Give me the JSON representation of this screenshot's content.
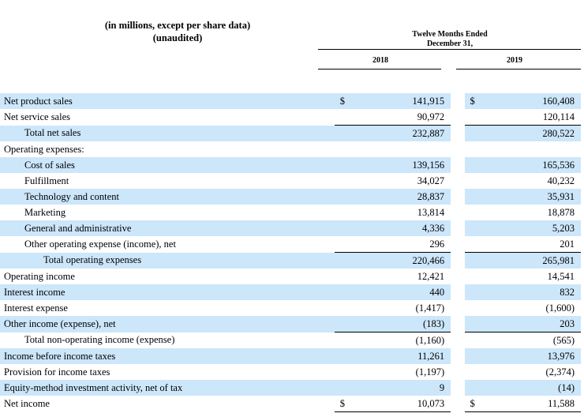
{
  "header": {
    "scope_line1": "(in millions, except per share data)",
    "scope_line2": "(unaudited)",
    "period_line1": "Twelve Months Ended",
    "period_line2": "December 31,",
    "year1": "2018",
    "year2": "2019"
  },
  "rows": [
    {
      "label": "Net product sales",
      "indent": 0,
      "cur": "$",
      "v2018": "141,915",
      "v2019": "160,408",
      "shade": true
    },
    {
      "label": "Net service sales",
      "indent": 0,
      "cur": "",
      "v2018": "90,972",
      "v2019": "120,114",
      "shade": false
    },
    {
      "label": "Total net sales",
      "indent": 1,
      "cur": "",
      "v2018": "232,887",
      "v2019": "280,522",
      "shade": true
    },
    {
      "label": "Operating expenses:",
      "indent": 0,
      "cur": "",
      "v2018": "",
      "v2019": "",
      "shade": false
    },
    {
      "label": "Cost of sales",
      "indent": 1,
      "cur": "",
      "v2018": "139,156",
      "v2019": "165,536",
      "shade": true
    },
    {
      "label": "Fulfillment",
      "indent": 1,
      "cur": "",
      "v2018": "34,027",
      "v2019": "40,232",
      "shade": false
    },
    {
      "label": "Technology and content",
      "indent": 1,
      "cur": "",
      "v2018": "28,837",
      "v2019": "35,931",
      "shade": true
    },
    {
      "label": "Marketing",
      "indent": 1,
      "cur": "",
      "v2018": "13,814",
      "v2019": "18,878",
      "shade": false
    },
    {
      "label": "General and administrative",
      "indent": 1,
      "cur": "",
      "v2018": "4,336",
      "v2019": "5,203",
      "shade": true
    },
    {
      "label": "Other operating expense (income), net",
      "indent": 1,
      "cur": "",
      "v2018": "296",
      "v2019": "201",
      "shade": false
    },
    {
      "label": "Total operating expenses",
      "indent": 2,
      "cur": "",
      "v2018": "220,466",
      "v2019": "265,981",
      "shade": true
    },
    {
      "label": "Operating income",
      "indent": 0,
      "cur": "",
      "v2018": "12,421",
      "v2019": "14,541",
      "shade": false
    },
    {
      "label": "Interest income",
      "indent": 0,
      "cur": "",
      "v2018": "440",
      "v2019": "832",
      "shade": true
    },
    {
      "label": "Interest expense",
      "indent": 0,
      "cur": "",
      "v2018": "(1,417)",
      "v2019": "(1,600)",
      "shade": false
    },
    {
      "label": "Other income (expense), net",
      "indent": 0,
      "cur": "",
      "v2018": "(183)",
      "v2019": "203",
      "shade": true
    },
    {
      "label": "Total non-operating income (expense)",
      "indent": 1,
      "cur": "",
      "v2018": "(1,160)",
      "v2019": "(565)",
      "shade": false
    },
    {
      "label": "Income before income taxes",
      "indent": 0,
      "cur": "",
      "v2018": "11,261",
      "v2019": "13,976",
      "shade": true
    },
    {
      "label": "Provision for income taxes",
      "indent": 0,
      "cur": "",
      "v2018": "(1,197)",
      "v2019": "(2,374)",
      "shade": false
    },
    {
      "label": "Equity-method investment activity, net of tax",
      "indent": 0,
      "cur": "",
      "v2018": "9",
      "v2019": "(14)",
      "shade": true
    },
    {
      "label": "Net income",
      "indent": 0,
      "cur": "$",
      "v2018": "10,073",
      "v2019": "11,588",
      "shade": false
    }
  ]
}
